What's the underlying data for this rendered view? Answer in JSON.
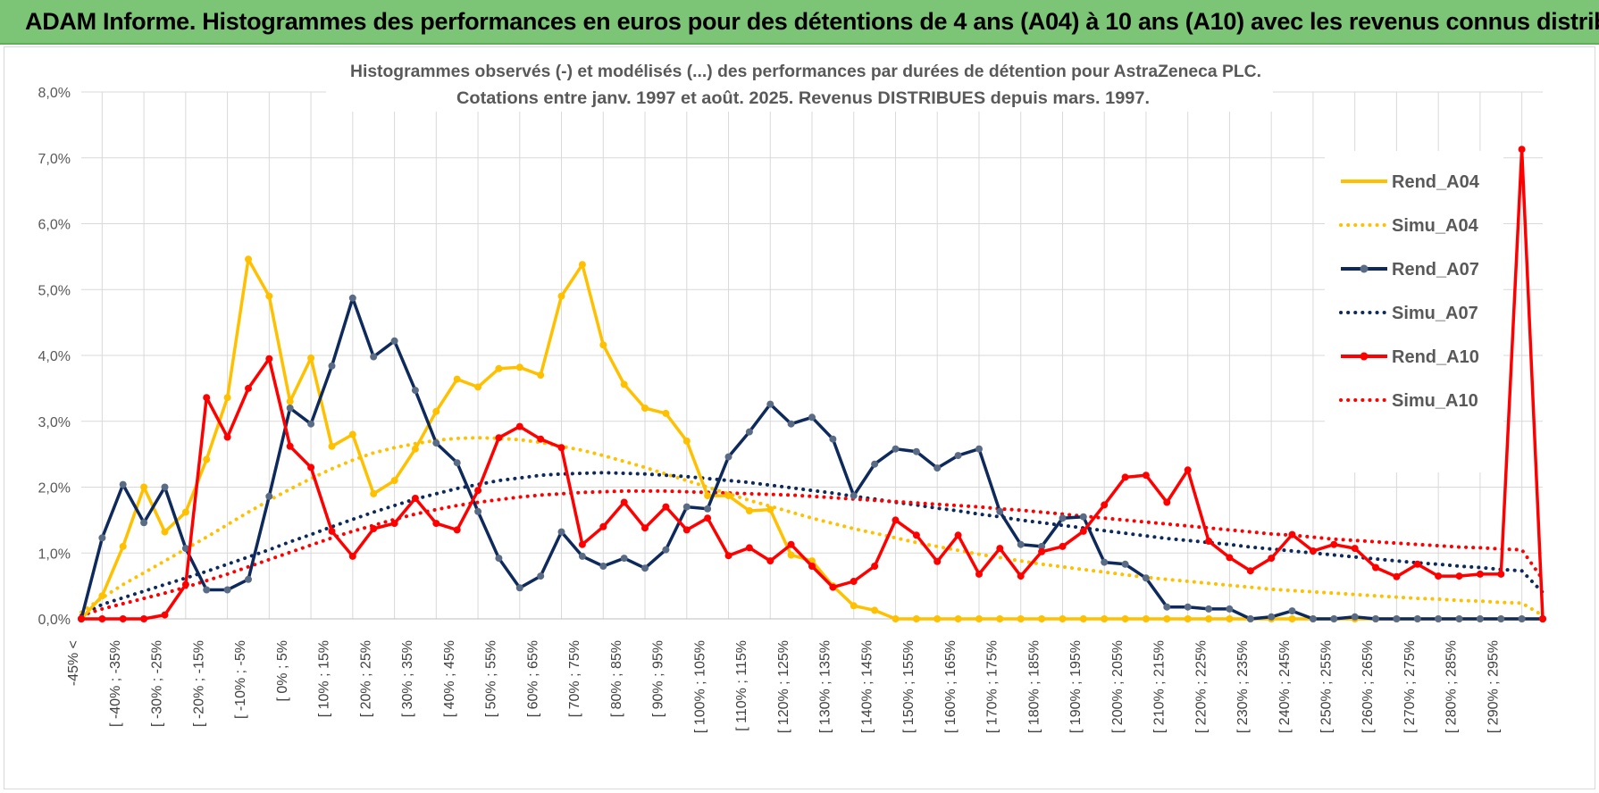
{
  "banner": {
    "title": "ADAM Informe. Histogrammes des performances en euros pour des détentions de 4 ans (A04) à 10 ans (A10) avec les revenus connus distribués",
    "background": "#7cc576"
  },
  "chart_data": {
    "type": "line",
    "title": "Histogrammes observés (-) et modélisés (...) des performances par durées de détention pour AstraZeneca PLC.",
    "subtitle": "Cotations entre janv. 1997 et août. 2025. Revenus DISTRIBUES depuis mars. 1997.",
    "xlabel": "",
    "ylabel": "",
    "ylim": [
      0,
      8
    ],
    "y_ticks": [
      "0,0%",
      "1,0%",
      "2,0%",
      "3,0%",
      "4,0%",
      "5,0%",
      "6,0%",
      "7,0%",
      "8,0%"
    ],
    "grid": true,
    "legend_position": "right",
    "x_tick_labels": [
      "-45% <",
      "[ -40% ; -35%",
      "[ -30% ; -25%",
      "[ -20% ; -15%",
      "[ -10% ; -5%",
      "[ 0% ; 5%",
      "[ 10% ; 15%",
      "[ 20% ; 25%",
      "[ 30% ; 35%",
      "[ 40% ; 45%",
      "[ 50% ; 55%",
      "[ 60% ; 65%",
      "[ 70% ; 75%",
      "[ 80% ; 85%",
      "[ 90% ; 95%",
      "[ 100% ; 105%",
      "[ 110% ; 115%",
      "[ 120% ; 125%",
      "[ 130% ; 135%",
      "[ 140% ; 145%",
      "[ 150% ; 155%",
      "[ 160% ; 165%",
      "[ 170% ; 175%",
      "[ 180% ; 185%",
      "[ 190% ; 195%",
      "[ 200% ; 205%",
      "[ 210% ; 215%",
      "[ 220% ; 225%",
      "[ 230% ; 235%",
      "[ 240% ; 245%",
      "[ 250% ; 255%",
      "[ 260% ; 265%",
      "[ 270% ; 275%",
      "[ 280% ; 285%",
      "[ 290% ; 295%"
    ],
    "series": [
      {
        "name": "Rend_A04",
        "style": "solid",
        "markers": true,
        "color": "#ffc000",
        "values": [
          0.0,
          0.35,
          1.1,
          2.0,
          1.32,
          1.62,
          2.42,
          3.36,
          5.46,
          4.9,
          3.3,
          3.96,
          2.62,
          2.8,
          1.9,
          2.1,
          2.58,
          3.15,
          3.64,
          3.52,
          3.8,
          3.82,
          3.7,
          4.9,
          5.38,
          4.16,
          3.56,
          3.2,
          3.12,
          2.7,
          1.87,
          1.87,
          1.64,
          1.66,
          0.97,
          0.88,
          0.5,
          0.2,
          0.13,
          0.0,
          0.0,
          0.0,
          0.0,
          0.0,
          0.0,
          0.0,
          0.0,
          0.0,
          0.0,
          0.0,
          0.0,
          0.0,
          0.0,
          0.0,
          0.0,
          0.0,
          0.0,
          0.0,
          0.0,
          0.0,
          0.0,
          0.0,
          0.0,
          0.0,
          0.0,
          0.0,
          0.0,
          0.0,
          0.0,
          0.0,
          0.0
        ]
      },
      {
        "name": "Simu_A04",
        "style": "dotted",
        "markers": false,
        "color": "#ffc000",
        "values": [
          0.1,
          0.32,
          0.52,
          0.7,
          0.88,
          1.06,
          1.24,
          1.43,
          1.62,
          1.8,
          1.97,
          2.13,
          2.28,
          2.41,
          2.52,
          2.6,
          2.66,
          2.71,
          2.74,
          2.75,
          2.74,
          2.72,
          2.68,
          2.62,
          2.56,
          2.48,
          2.39,
          2.3,
          2.2,
          2.1,
          2.0,
          1.9,
          1.8,
          1.71,
          1.62,
          1.53,
          1.45,
          1.37,
          1.3,
          1.23,
          1.16,
          1.1,
          1.04,
          0.98,
          0.93,
          0.88,
          0.83,
          0.79,
          0.75,
          0.71,
          0.67,
          0.63,
          0.6,
          0.57,
          0.54,
          0.51,
          0.48,
          0.45,
          0.43,
          0.41,
          0.39,
          0.37,
          0.35,
          0.33,
          0.31,
          0.3,
          0.28,
          0.27,
          0.25,
          0.24,
          0.05
        ]
      },
      {
        "name": "Rend_A07",
        "style": "solid",
        "markers": true,
        "color": "#0e2a5c",
        "values": [
          0.0,
          1.23,
          2.04,
          1.46,
          2.0,
          1.07,
          0.44,
          0.44,
          0.6,
          1.86,
          3.2,
          2.96,
          3.84,
          4.87,
          3.98,
          4.22,
          3.47,
          2.67,
          2.37,
          1.63,
          0.92,
          0.47,
          0.65,
          1.32,
          0.95,
          0.8,
          0.92,
          0.77,
          1.05,
          1.7,
          1.67,
          2.46,
          2.84,
          3.26,
          2.96,
          3.06,
          2.73,
          1.87,
          2.35,
          2.58,
          2.54,
          2.29,
          2.48,
          2.58,
          1.63,
          1.13,
          1.1,
          1.53,
          1.55,
          0.86,
          0.83,
          0.62,
          0.18,
          0.18,
          0.15,
          0.15,
          0.0,
          0.03,
          0.12,
          0.0,
          0.0,
          0.03,
          0.0,
          0.0,
          0.0,
          0.0,
          0.0,
          0.0,
          0.0,
          0.0,
          0.0
        ]
      },
      {
        "name": "Simu_A07",
        "style": "dotted",
        "markers": false,
        "color": "#0e2a5c",
        "values": [
          0.05,
          0.22,
          0.32,
          0.42,
          0.52,
          0.62,
          0.72,
          0.83,
          0.94,
          1.05,
          1.17,
          1.28,
          1.4,
          1.51,
          1.62,
          1.72,
          1.82,
          1.9,
          1.98,
          2.04,
          2.1,
          2.14,
          2.18,
          2.2,
          2.21,
          2.22,
          2.21,
          2.2,
          2.18,
          2.16,
          2.13,
          2.1,
          2.07,
          2.03,
          1.99,
          1.95,
          1.91,
          1.86,
          1.82,
          1.77,
          1.73,
          1.68,
          1.64,
          1.59,
          1.55,
          1.5,
          1.46,
          1.42,
          1.38,
          1.34,
          1.3,
          1.26,
          1.22,
          1.19,
          1.16,
          1.13,
          1.09,
          1.06,
          1.03,
          1.0,
          0.97,
          0.94,
          0.91,
          0.88,
          0.85,
          0.83,
          0.8,
          0.78,
          0.75,
          0.73,
          0.4
        ]
      },
      {
        "name": "Rend_A10",
        "style": "solid",
        "markers": true,
        "color": "#ff0000",
        "values": [
          0.0,
          0.0,
          0.0,
          0.0,
          0.06,
          0.52,
          3.36,
          2.76,
          3.5,
          3.95,
          2.62,
          2.3,
          1.33,
          0.95,
          1.37,
          1.45,
          1.83,
          1.45,
          1.35,
          1.95,
          2.75,
          2.92,
          2.73,
          2.6,
          1.13,
          1.4,
          1.77,
          1.38,
          1.7,
          1.35,
          1.53,
          0.96,
          1.08,
          0.88,
          1.13,
          0.8,
          0.48,
          0.57,
          0.8,
          1.5,
          1.27,
          0.87,
          1.27,
          0.68,
          1.07,
          0.65,
          1.02,
          1.1,
          1.33,
          1.73,
          2.15,
          2.18,
          1.77,
          2.26,
          1.18,
          0.93,
          0.73,
          0.92,
          1.28,
          1.03,
          1.13,
          1.07,
          0.78,
          0.64,
          0.83,
          0.65,
          0.65,
          0.68,
          0.68,
          7.13,
          0.0
        ]
      },
      {
        "name": "Simu_A10",
        "style": "dotted",
        "markers": false,
        "color": "#ff0000",
        "values": [
          0.05,
          0.15,
          0.23,
          0.31,
          0.39,
          0.48,
          0.58,
          0.68,
          0.79,
          0.9,
          1.01,
          1.12,
          1.23,
          1.33,
          1.42,
          1.51,
          1.59,
          1.66,
          1.72,
          1.77,
          1.81,
          1.85,
          1.88,
          1.9,
          1.92,
          1.93,
          1.94,
          1.94,
          1.94,
          1.93,
          1.92,
          1.91,
          1.9,
          1.89,
          1.88,
          1.86,
          1.84,
          1.82,
          1.8,
          1.78,
          1.76,
          1.74,
          1.72,
          1.7,
          1.67,
          1.65,
          1.62,
          1.59,
          1.56,
          1.53,
          1.5,
          1.47,
          1.44,
          1.41,
          1.38,
          1.35,
          1.32,
          1.29,
          1.27,
          1.24,
          1.21,
          1.19,
          1.17,
          1.15,
          1.13,
          1.11,
          1.09,
          1.08,
          1.06,
          1.05,
          0.6
        ]
      }
    ]
  }
}
